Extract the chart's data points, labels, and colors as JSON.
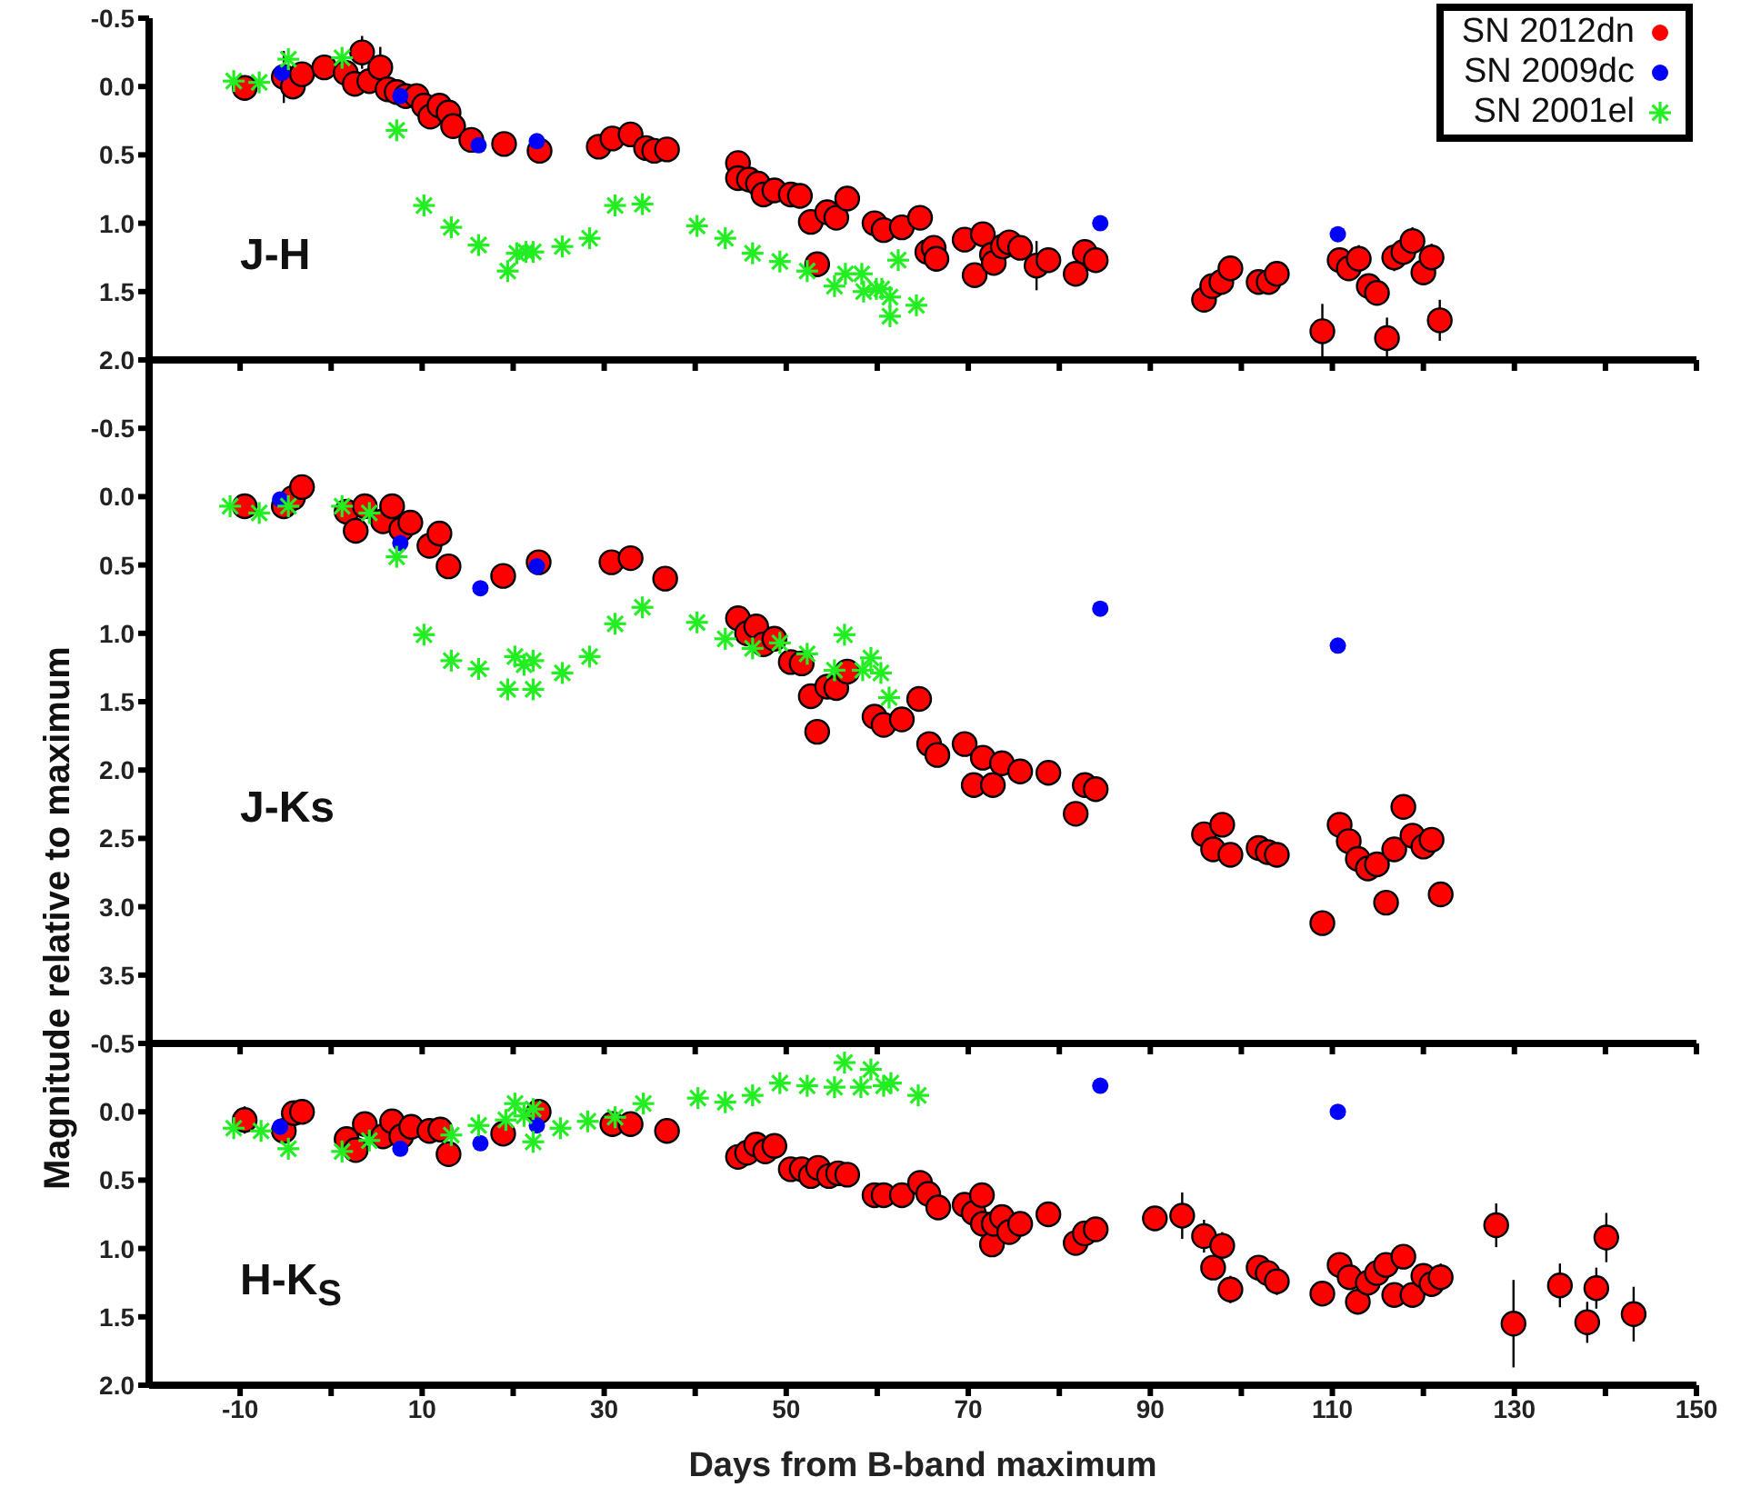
{
  "chart_data": [
    {
      "type": "scatter",
      "annotations": [
        "J-H"
      ],
      "xlim": [
        -20,
        150
      ],
      "xticks": [
        -10,
        {
          "value": 0,
          "label": null
        },
        10,
        {
          "value": 20,
          "label": null
        },
        30,
        {
          "value": 40,
          "label": null
        },
        50,
        {
          "value": 60,
          "label": null
        },
        70,
        {
          "value": 80,
          "label": null
        },
        90,
        {
          "value": 100,
          "label": null
        },
        110,
        {
          "value": 120,
          "label": null
        },
        130,
        {
          "value": 140,
          "label": null
        },
        150
      ],
      "ylim": [
        2.0,
        -0.5
      ],
      "yticks": [
        -0.5,
        {
          "value": 0,
          "label": "0.0"
        },
        0.5,
        {
          "value": 1,
          "label": "1.0"
        },
        1.5,
        {
          "value": 2,
          "label": "2.0"
        }
      ],
      "tick_labels": "y",
      "legend": "top right",
      "series": [
        {
          "name": "SN 2012dn",
          "color": "#ff0000",
          "marker": "circle",
          "x": [
            -9.5,
            -5.2,
            -4.2,
            -3.2,
            -0.75,
            1.6,
            2.6,
            3.4,
            4.2,
            5.4,
            6.2,
            7.2,
            8.2,
            9.4,
            10.2,
            10.9,
            11.9,
            12.9,
            13.4,
            15.4,
            19.0,
            22.9,
            29.4,
            30.9,
            32.9,
            34.6,
            35.5,
            36.9,
            44.7,
            44.7,
            45.9,
            46.9,
            47.5,
            48.7,
            50.5,
            51.5,
            52.7,
            53.4,
            54.5,
            55.5,
            56.7,
            59.7,
            60.7,
            62.7,
            64.7,
            65.5,
            66.2,
            66.5,
            69.6,
            70.7,
            71.6,
            72.6,
            72.8,
            73.8,
            74.5,
            75.7,
            77.5,
            78.8,
            81.8,
            82.8,
            84.0,
            95.9,
            96.8,
            97.8,
            98.8,
            101.9,
            103.0,
            103.9,
            108.9,
            110.8,
            111.8,
            112.9,
            114.0,
            114.9,
            116.0,
            116.8,
            117.8,
            118.8,
            120.0,
            120.9,
            121.8
          ],
          "values": [
            0.01,
            -0.07,
            0.0,
            -0.09,
            -0.14,
            -0.1,
            -0.02,
            -0.25,
            -0.04,
            -0.14,
            0.02,
            0.04,
            0.07,
            0.07,
            0.14,
            0.22,
            0.14,
            0.19,
            0.29,
            0.39,
            0.42,
            0.47,
            0.44,
            0.38,
            0.35,
            0.45,
            0.47,
            0.46,
            0.56,
            0.67,
            0.68,
            0.71,
            0.79,
            0.76,
            0.79,
            0.8,
            0.99,
            1.3,
            0.92,
            0.96,
            0.82,
            1.0,
            1.05,
            1.03,
            0.96,
            1.21,
            1.18,
            1.26,
            1.12,
            1.38,
            1.08,
            1.23,
            1.29,
            1.17,
            1.14,
            1.18,
            1.31,
            1.27,
            1.37,
            1.21,
            1.27,
            1.56,
            1.46,
            1.43,
            1.33,
            1.43,
            1.43,
            1.37,
            1.79,
            1.27,
            1.33,
            1.26,
            1.46,
            1.51,
            1.84,
            1.25,
            1.21,
            1.13,
            1.36,
            1.25,
            1.71
          ],
          "errors": [
            null,
            0.19,
            null,
            null,
            null,
            null,
            null,
            0.12,
            null,
            0.15,
            null,
            null,
            null,
            null,
            null,
            null,
            null,
            null,
            null,
            null,
            null,
            null,
            null,
            null,
            null,
            null,
            null,
            null,
            null,
            null,
            null,
            null,
            null,
            null,
            null,
            null,
            null,
            null,
            null,
            null,
            null,
            null,
            null,
            null,
            null,
            null,
            null,
            null,
            null,
            0.08,
            null,
            null,
            null,
            null,
            null,
            null,
            0.18,
            null,
            null,
            null,
            null,
            0.05,
            0.05,
            0.08,
            0.08,
            null,
            null,
            0.08,
            0.2,
            null,
            null,
            0.1,
            null,
            null,
            0.15,
            0.1,
            0.08,
            0.1,
            null,
            0.1,
            0.15
          ]
        },
        {
          "name": "SN 2009dc",
          "color": "#0000ff",
          "marker": "circle",
          "x": [
            -5.4,
            7.6,
            16.2,
            22.6,
            84.5,
            110.6
          ],
          "values": [
            -0.1,
            0.07,
            0.43,
            0.4,
            1.0,
            1.08
          ]
        },
        {
          "name": "SN 2001el",
          "color": "#22ee22",
          "marker": "cross",
          "x": [
            -10.7,
            -7.9,
            -4.7,
            1.2,
            7.2,
            10.2,
            13.2,
            16.2,
            19.4,
            20.4,
            21.4,
            22.2,
            25.4,
            28.4,
            31.2,
            34.2,
            40.2,
            43.3,
            46.3,
            49.3,
            52.3,
            55.3,
            56.5,
            58.3,
            58.5,
            59.9,
            60.5,
            61.4,
            61.4,
            62.3,
            64.3
          ],
          "values": [
            -0.04,
            -0.03,
            -0.2,
            -0.21,
            0.32,
            0.87,
            1.03,
            1.16,
            1.35,
            1.22,
            1.21,
            1.21,
            1.17,
            1.11,
            0.87,
            0.86,
            1.02,
            1.11,
            1.22,
            1.28,
            1.35,
            1.46,
            1.37,
            1.37,
            1.5,
            1.48,
            1.48,
            1.54,
            1.68,
            1.27,
            1.6
          ]
        }
      ]
    },
    {
      "type": "scatter",
      "annotations": [
        "J-Ks"
      ],
      "ylabel": "Magnitude relative to maximum",
      "xlim": [
        -20,
        150
      ],
      "xticks": [
        -10,
        {
          "value": 0,
          "label": null
        },
        10,
        {
          "value": 20,
          "label": null
        },
        30,
        {
          "value": 40,
          "label": null
        },
        50,
        {
          "value": 60,
          "label": null
        },
        70,
        {
          "value": 80,
          "label": null
        },
        90,
        {
          "value": 100,
          "label": null
        },
        110,
        {
          "value": 120,
          "label": null
        },
        130,
        {
          "value": 140,
          "label": null
        },
        150
      ],
      "ylim": [
        4.0,
        -1.0
      ],
      "yticks": [
        {
          "value": -1,
          "label": null
        },
        -0.5,
        {
          "value": 0,
          "label": "0.0"
        },
        0.5,
        {
          "value": 1,
          "label": "1.0"
        },
        1.5,
        {
          "value": 2,
          "label": "2.0"
        },
        2.5,
        {
          "value": 3,
          "label": "3.0"
        },
        3.5,
        {
          "value": 4,
          "label": null
        }
      ],
      "tick_labels": "y",
      "series": [
        {
          "color": "#ff0000",
          "marker": "circle",
          "x": [
            -9.5,
            -5.2,
            -4.2,
            -3.2,
            1.7,
            2.7,
            3.7,
            5.7,
            6.7,
            7.7,
            8.7,
            10.8,
            11.9,
            12.9,
            18.9,
            22.8,
            30.8,
            32.9,
            36.7,
            44.7,
            45.7,
            46.7,
            47.5,
            48.7,
            50.5,
            51.7,
            52.7,
            53.4,
            54.5,
            55.5,
            56.7,
            59.7,
            60.7,
            62.7,
            64.6,
            65.7,
            66.6,
            69.6,
            70.6,
            71.6,
            72.7,
            73.7,
            75.7,
            78.8,
            81.8,
            82.8,
            84.0,
            95.9,
            96.9,
            97.9,
            98.8,
            101.9,
            102.9,
            103.9,
            108.9,
            110.8,
            111.8,
            112.8,
            113.9,
            114.9,
            115.9,
            116.8,
            117.8,
            118.8,
            120.0,
            120.9,
            121.9
          ],
          "values": [
            0.07,
            0.07,
            0.01,
            -0.07,
            0.11,
            0.25,
            0.07,
            0.18,
            0.07,
            0.24,
            0.19,
            0.36,
            0.27,
            0.51,
            0.58,
            0.48,
            0.48,
            0.45,
            0.6,
            0.89,
            1.0,
            0.95,
            1.08,
            1.04,
            1.21,
            1.22,
            1.46,
            1.72,
            1.39,
            1.4,
            1.28,
            1.61,
            1.67,
            1.63,
            1.48,
            1.81,
            1.89,
            1.81,
            2.11,
            1.91,
            2.11,
            1.95,
            2.01,
            2.02,
            2.32,
            2.11,
            2.14,
            2.47,
            2.58,
            2.4,
            2.62,
            2.57,
            2.6,
            2.62,
            3.12,
            2.4,
            2.52,
            2.65,
            2.72,
            2.69,
            2.97,
            2.58,
            2.27,
            2.48,
            2.56,
            2.51,
            2.91
          ]
        },
        {
          "color": "#0000ff",
          "marker": "circle",
          "x": [
            -5.6,
            7.6,
            16.4,
            22.6,
            84.5,
            110.6
          ],
          "values": [
            0.02,
            0.34,
            0.67,
            0.51,
            0.82,
            1.09
          ]
        },
        {
          "color": "#22ee22",
          "marker": "cross",
          "x": [
            -11.1,
            -7.9,
            -4.7,
            1.2,
            4.2,
            7.2,
            10.2,
            13.2,
            16.2,
            19.4,
            20.2,
            21.2,
            22.2,
            22.2,
            25.4,
            28.4,
            31.2,
            34.2,
            40.2,
            43.3,
            46.3,
            49.3,
            52.3,
            55.3,
            56.4,
            58.4,
            59.3,
            60.4,
            61.3
          ],
          "values": [
            0.07,
            0.12,
            0.07,
            0.07,
            0.12,
            0.44,
            1.01,
            1.2,
            1.26,
            1.41,
            1.17,
            1.23,
            1.2,
            1.41,
            1.29,
            1.17,
            0.93,
            0.81,
            0.92,
            1.04,
            1.11,
            1.07,
            1.15,
            1.27,
            1.01,
            1.27,
            1.18,
            1.29,
            1.47
          ]
        }
      ]
    },
    {
      "type": "scatter",
      "annotations": [
        "H-K$_{S}$"
      ],
      "xlabel": "Days from B-band maximum",
      "xlim": [
        -20,
        150
      ],
      "xticks": [
        -10,
        {
          "value": 0,
          "label": null
        },
        10,
        {
          "value": 20,
          "label": null
        },
        30,
        {
          "value": 40,
          "label": null
        },
        50,
        {
          "value": 60,
          "label": null
        },
        70,
        {
          "value": 80,
          "label": null
        },
        90,
        {
          "value": 100,
          "label": null
        },
        110,
        {
          "value": 120,
          "label": null
        },
        130,
        {
          "value": 140,
          "label": null
        },
        150
      ],
      "ylim": [
        2.0,
        -0.5
      ],
      "yticks": [
        -0.5,
        {
          "value": 0,
          "label": "0.0"
        },
        0.5,
        {
          "value": 1,
          "label": "1.0"
        },
        1.5,
        {
          "value": 2,
          "label": "2.0"
        }
      ],
      "series": [
        {
          "color": "#ff0000",
          "marker": "circle",
          "x": [
            -9.5,
            -5.2,
            -4.1,
            -3.2,
            1.7,
            2.7,
            3.7,
            5.7,
            6.7,
            7.7,
            8.8,
            10.8,
            12.0,
            12.9,
            18.9,
            22.8,
            30.9,
            32.9,
            36.9,
            44.7,
            45.7,
            46.7,
            47.7,
            48.7,
            50.5,
            51.7,
            52.7,
            53.5,
            54.7,
            55.7,
            56.7,
            59.7,
            60.7,
            62.7,
            64.7,
            65.6,
            66.7,
            69.6,
            70.6,
            71.5,
            71.6,
            72.6,
            72.8,
            73.7,
            74.5,
            75.7,
            78.8,
            81.8,
            82.8,
            84.0,
            90.5,
            93.5,
            95.9,
            96.9,
            97.9,
            98.8,
            101.9,
            102.9,
            103.9,
            108.9,
            110.8,
            111.9,
            112.8,
            113.9,
            114.9,
            115.9,
            116.8,
            117.8,
            118.8,
            120.0,
            120.9,
            121.9,
            128.0,
            129.9,
            135.0,
            138.0,
            139.0,
            140.1,
            143.1
          ],
          "values": [
            0.06,
            0.14,
            0.01,
            0.0,
            0.2,
            0.28,
            0.09,
            0.18,
            0.07,
            0.18,
            0.11,
            0.14,
            0.13,
            0.31,
            0.16,
            0.0,
            0.09,
            0.09,
            0.14,
            0.33,
            0.3,
            0.24,
            0.29,
            0.25,
            0.42,
            0.42,
            0.47,
            0.41,
            0.47,
            0.45,
            0.46,
            0.61,
            0.61,
            0.61,
            0.52,
            0.6,
            0.7,
            0.68,
            0.74,
            0.61,
            0.82,
            0.97,
            0.82,
            0.77,
            0.88,
            0.82,
            0.75,
            0.96,
            0.89,
            0.86,
            0.78,
            0.76,
            0.91,
            1.14,
            0.98,
            1.3,
            1.14,
            1.18,
            1.24,
            1.33,
            1.12,
            1.21,
            1.39,
            1.25,
            1.18,
            1.12,
            1.34,
            1.06,
            1.34,
            1.2,
            1.26,
            1.21,
            0.83,
            1.55,
            1.27,
            1.54,
            1.29,
            0.92,
            1.48
          ],
          "errors": [
            0.1,
            null,
            0.08,
            0.08,
            null,
            null,
            0.08,
            null,
            null,
            null,
            null,
            null,
            null,
            null,
            null,
            null,
            null,
            null,
            null,
            null,
            null,
            null,
            null,
            null,
            null,
            null,
            null,
            null,
            null,
            null,
            null,
            null,
            null,
            null,
            null,
            null,
            null,
            null,
            null,
            null,
            null,
            null,
            null,
            null,
            null,
            null,
            null,
            null,
            null,
            null,
            null,
            0.17,
            0.12,
            null,
            0.1,
            0.1,
            null,
            null,
            0.1,
            null,
            0.08,
            null,
            null,
            null,
            null,
            null,
            null,
            null,
            null,
            null,
            null,
            0.1,
            0.16,
            0.32,
            0.16,
            0.15,
            0.15,
            0.18,
            0.2
          ]
        },
        {
          "color": "#0000ff",
          "marker": "circle",
          "x": [
            -5.6,
            7.6,
            16.4,
            22.6,
            84.5,
            110.6
          ],
          "values": [
            0.11,
            0.27,
            0.23,
            0.1,
            -0.19,
            0.0
          ]
        },
        {
          "color": "#22ee22",
          "marker": "cross",
          "x": [
            -10.7,
            -7.7,
            -4.7,
            1.2,
            4.2,
            13.2,
            16.2,
            19.2,
            20.2,
            21.2,
            22.2,
            22.2,
            25.2,
            28.2,
            31.2,
            34.3,
            40.3,
            43.3,
            46.3,
            49.3,
            52.3,
            55.3,
            56.4,
            58.2,
            59.3,
            60.7,
            61.5,
            64.5
          ],
          "values": [
            0.12,
            0.14,
            0.27,
            0.29,
            0.21,
            0.17,
            0.1,
            0.06,
            -0.06,
            0.03,
            0.22,
            -0.02,
            0.12,
            0.07,
            0.04,
            -0.06,
            -0.1,
            -0.07,
            -0.12,
            -0.21,
            -0.19,
            -0.18,
            -0.36,
            -0.18,
            -0.31,
            -0.19,
            -0.21,
            -0.12
          ]
        }
      ]
    }
  ]
}
